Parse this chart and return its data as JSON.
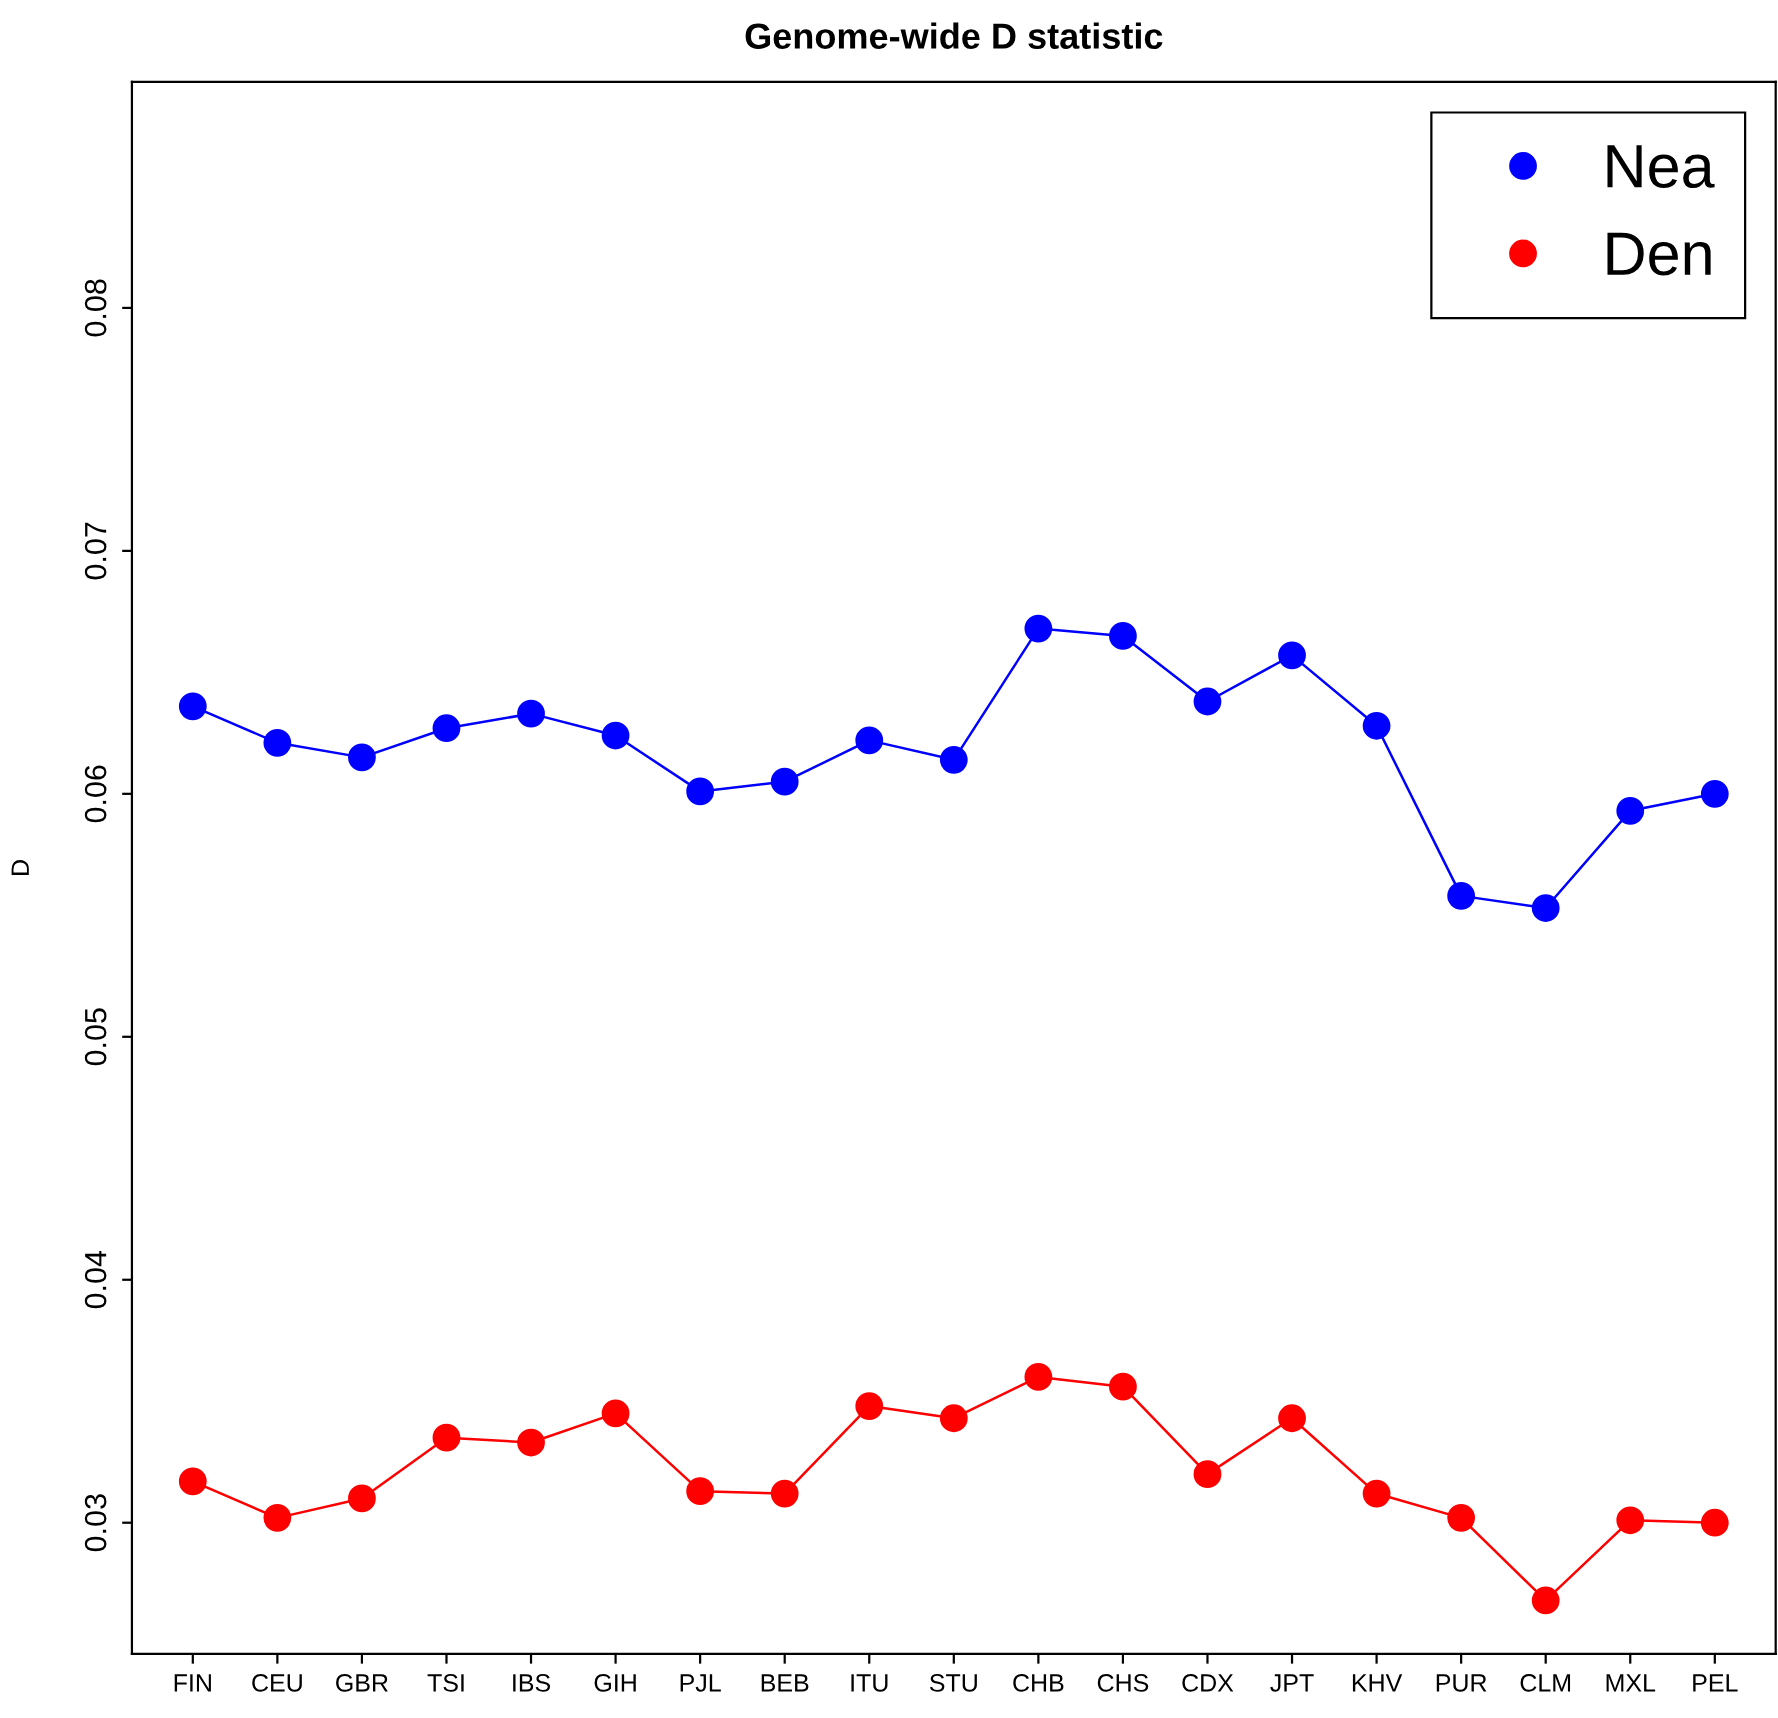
{
  "chart_data": {
    "type": "line",
    "title": "Genome-wide D statistic",
    "ylabel": "D",
    "categories": [
      "FIN",
      "CEU",
      "GBR",
      "TSI",
      "IBS",
      "GIH",
      "PJL",
      "BEB",
      "ITU",
      "STU",
      "CHB",
      "CHS",
      "CDX",
      "JPT",
      "KHV",
      "PUR",
      "CLM",
      "MXL",
      "PEL"
    ],
    "series": [
      {
        "name": "Nea",
        "color": "#0000ff",
        "values": [
          0.0636,
          0.0621,
          0.0615,
          0.0627,
          0.0633,
          0.0624,
          0.0601,
          0.0605,
          0.0622,
          0.0614,
          0.0668,
          0.0665,
          0.0638,
          0.0657,
          0.0628,
          0.0558,
          0.0553,
          0.0593,
          0.06
        ]
      },
      {
        "name": "Den",
        "color": "#ff0000",
        "values": [
          0.0317,
          0.0302,
          0.031,
          0.0335,
          0.0333,
          0.0345,
          0.0313,
          0.0312,
          0.0348,
          0.0343,
          0.036,
          0.0356,
          0.032,
          0.0343,
          0.0312,
          0.0302,
          0.0268,
          0.0301,
          0.03
        ]
      }
    ],
    "ylim": [
      0.0246,
      0.0893
    ],
    "yticks": [
      0.03,
      0.04,
      0.05,
      0.06,
      0.07,
      0.08
    ],
    "marker": "circle",
    "line_style": "solid",
    "grid": false,
    "legend": "top right"
  }
}
